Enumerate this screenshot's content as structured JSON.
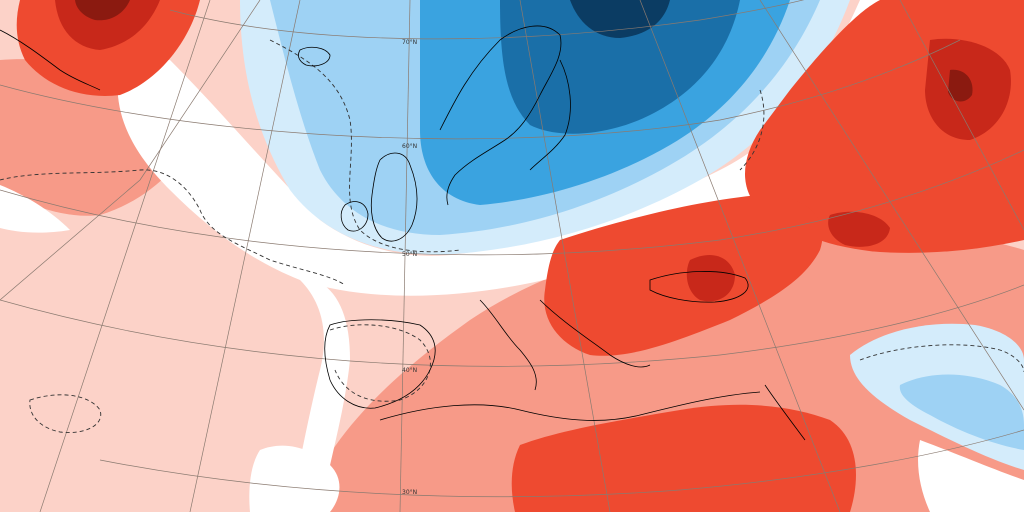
{
  "map": {
    "lat_labels": [
      "70°N",
      "60°N",
      "50°N",
      "40°N",
      "30°N"
    ],
    "palette": {
      "warm_strong": "#8b1a10",
      "warm_high": "#c8281a",
      "warm_mid": "#ee4a30",
      "warm_low": "#f79a88",
      "warm_faint": "#fcd2c8",
      "neutral": "#ffffff",
      "cool_faint": "#d4ecfb",
      "cool_low": "#9ed2f4",
      "cool_mid": "#3aa3e0",
      "cool_high": "#1a6fa8",
      "cool_strong": "#0b3c63",
      "coastline": "#000000",
      "borders": "#6f6f6f",
      "graticule": "#8a7a70"
    },
    "icons": [
      "anomaly-shading",
      "coastline-lines",
      "graticule-lines",
      "dashed-zero-contour"
    ]
  }
}
